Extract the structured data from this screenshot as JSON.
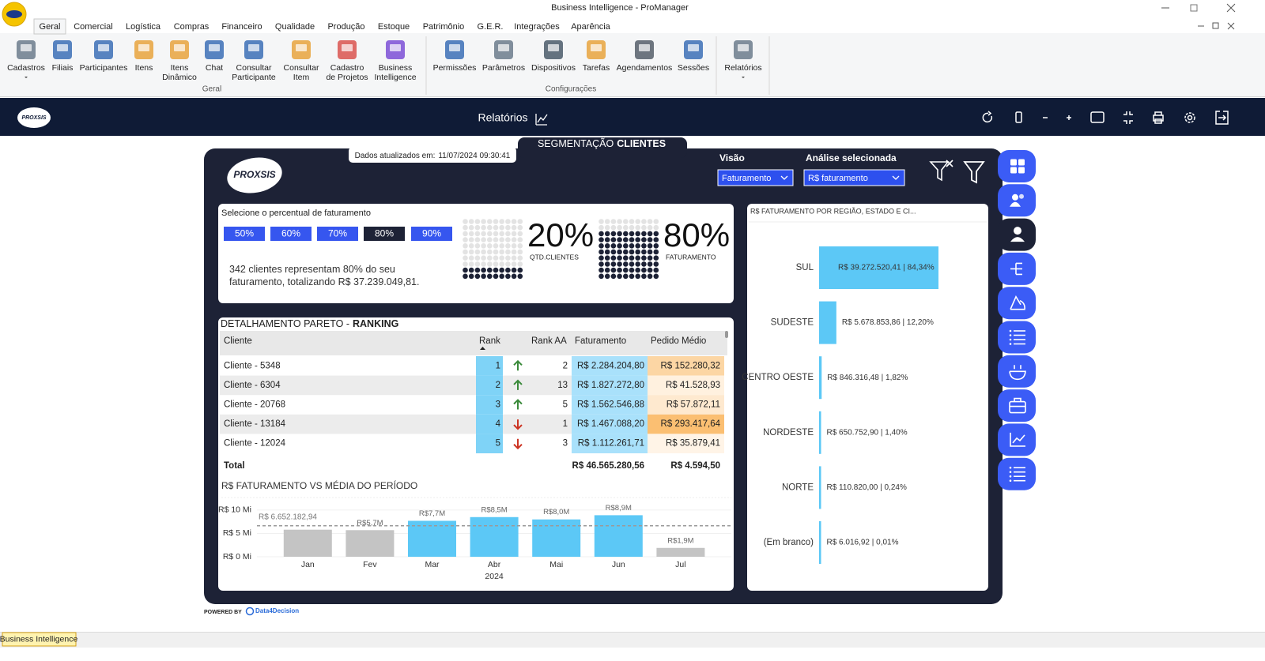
{
  "window": {
    "title": "Business Intelligence - ProManager"
  },
  "ribbon": {
    "tabs": [
      "Geral",
      "Comercial",
      "Logística",
      "Compras",
      "Financeiro",
      "Qualidade",
      "Produção",
      "Estoque",
      "Patrimônio",
      "G.E.R.",
      "Integrações",
      "Aparência"
    ],
    "active_tab": 0,
    "groups": [
      {
        "label": "Geral",
        "items": [
          "Cadastros",
          "Filiais",
          "Participantes",
          "Itens",
          "Itens\nDinâmico",
          "Chat",
          "Consultar\nParticipante",
          "Consultar\nItem",
          "Cadastro\nde Projetos",
          "Business\nIntelligence"
        ]
      },
      {
        "label": "Configurações",
        "items": [
          "Permissões",
          "Parâmetros",
          "Dispositivos",
          "Tarefas",
          "Agendamentos",
          "Sessões"
        ]
      },
      {
        "items": [
          "Relatórios"
        ]
      }
    ]
  },
  "bi_header": {
    "logo": "PROXSIS",
    "title": "Relatórios"
  },
  "report": {
    "updated_label": "Dados atualizados em:",
    "updated_value": "11/07/2024 09:30:41",
    "title": "SEGMENTAÇÃO",
    "title_bold": "CLIENTES",
    "logo": "PROXSIS",
    "filters": [
      {
        "label": "Visão",
        "value": "Faturamento"
      },
      {
        "label": "Análise selecionada",
        "value": "R$ faturamento"
      }
    ],
    "percent_selector": {
      "label": "Selecione o percentual de faturamento",
      "options": [
        "50%",
        "60%",
        "70%",
        "80%",
        "90%"
      ],
      "selected": 3,
      "summary": "342 clientes representam 80% do seu faturamento, totalizando R$ 37.239.049,81."
    },
    "kpis": [
      {
        "value": 20,
        "label": "20%",
        "caption": "QTD.CLIENTES"
      },
      {
        "value": 80,
        "label": "80%",
        "caption": "FATURAMENTO"
      }
    ],
    "ranking": {
      "title": "DETALHAMENTO PARETO -",
      "title_bold": "RANKING",
      "columns": [
        "Cliente",
        "Rank",
        "Rank AA",
        "Faturamento",
        "Pedido Médio"
      ],
      "rows": [
        {
          "cliente": "Cliente - 5348",
          "rank": 1,
          "trend": "up",
          "rank_aa": 2,
          "faturamento": "R$ 2.284.204,80",
          "pedido_medio": "R$ 152.280,32",
          "pedido_color": "#fcd6a4"
        },
        {
          "cliente": "Cliente - 6304",
          "rank": 2,
          "trend": "up",
          "rank_aa": 13,
          "faturamento": "R$ 1.827.272,80",
          "pedido_medio": "R$ 41.528,93",
          "pedido_color": "#fff1df"
        },
        {
          "cliente": "Cliente - 20768",
          "rank": 3,
          "trend": "up",
          "rank_aa": 5,
          "faturamento": "R$ 1.562.546,88",
          "pedido_medio": "R$ 57.872,11",
          "pedido_color": "#fee9cf"
        },
        {
          "cliente": "Cliente - 13184",
          "rank": 4,
          "trend": "down",
          "rank_aa": 1,
          "faturamento": "R$ 1.467.088,20",
          "pedido_medio": "R$ 293.417,64",
          "pedido_color": "#fbbf72"
        },
        {
          "cliente": "Cliente - 12024",
          "rank": 5,
          "trend": "down",
          "rank_aa": 3,
          "faturamento": "R$ 1.112.261,71",
          "pedido_medio": "R$ 35.879,41",
          "pedido_color": "#fff4e7"
        }
      ],
      "total": {
        "label": "Total",
        "faturamento": "R$ 46.565.280,56",
        "pedido_medio": "R$ 4.594,50"
      }
    },
    "monthly_chart": {
      "type": "bar",
      "title": "R$ FATURAMENTO VS MÉDIA DO PERÍODO",
      "categories": [
        "Jan",
        "Fev",
        "Mar",
        "Abr",
        "Mai",
        "Jun",
        "Jul"
      ],
      "x_group": "2024",
      "values": [
        5.8,
        5.7,
        7.7,
        8.5,
        8.0,
        8.9,
        1.9
      ],
      "value_labels": [
        null,
        "R$5,7M",
        "R$7,7M",
        "R$8,5M",
        "R$8,0M",
        "R$8,9M",
        "R$1,9M"
      ],
      "colors": [
        "#c4c4c4",
        "#c4c4c4",
        "#5cc8f6",
        "#5cc8f6",
        "#5cc8f6",
        "#5cc8f6",
        "#c4c4c4"
      ],
      "ylim": [
        0,
        11
      ],
      "yticks": [
        {
          "value": 0,
          "label": "R$ 0 Mi"
        },
        {
          "value": 5,
          "label": "R$ 5 Mi"
        },
        {
          "value": 10,
          "label": "R$ 10 Mi"
        }
      ],
      "average": {
        "value": 6.65218294,
        "label": "R$ 6.652.182,94"
      }
    },
    "region_chart": {
      "type": "bar",
      "orientation": "horizontal",
      "title": "R$ FATURAMENTO POR REGIÃO, ESTADO E CI...",
      "categories": [
        "SUL",
        "SUDESTE",
        "CENTRO OESTE",
        "NORDESTE",
        "NORTE",
        "(Em branco)"
      ],
      "values": [
        39272520.41,
        5678853.86,
        846316.48,
        650752.9,
        110820.0,
        6016.92
      ],
      "value_labels": [
        "R$ 39.272.520,41 | 84,34%",
        "R$ 5.678.853,86 | 12,20%",
        "R$ 846.316,48 | 1,82%",
        "R$ 650.752,90 | 1,40%",
        "R$ 110.820,00 | 0,24%",
        "R$ 6.016,92 | 0,01%"
      ],
      "color": "#5cc8f6"
    },
    "footer": {
      "powered_by": "POWERED BY",
      "brand": "Data4Decision"
    }
  },
  "status_bar": {
    "item": "Business Intelligence"
  }
}
